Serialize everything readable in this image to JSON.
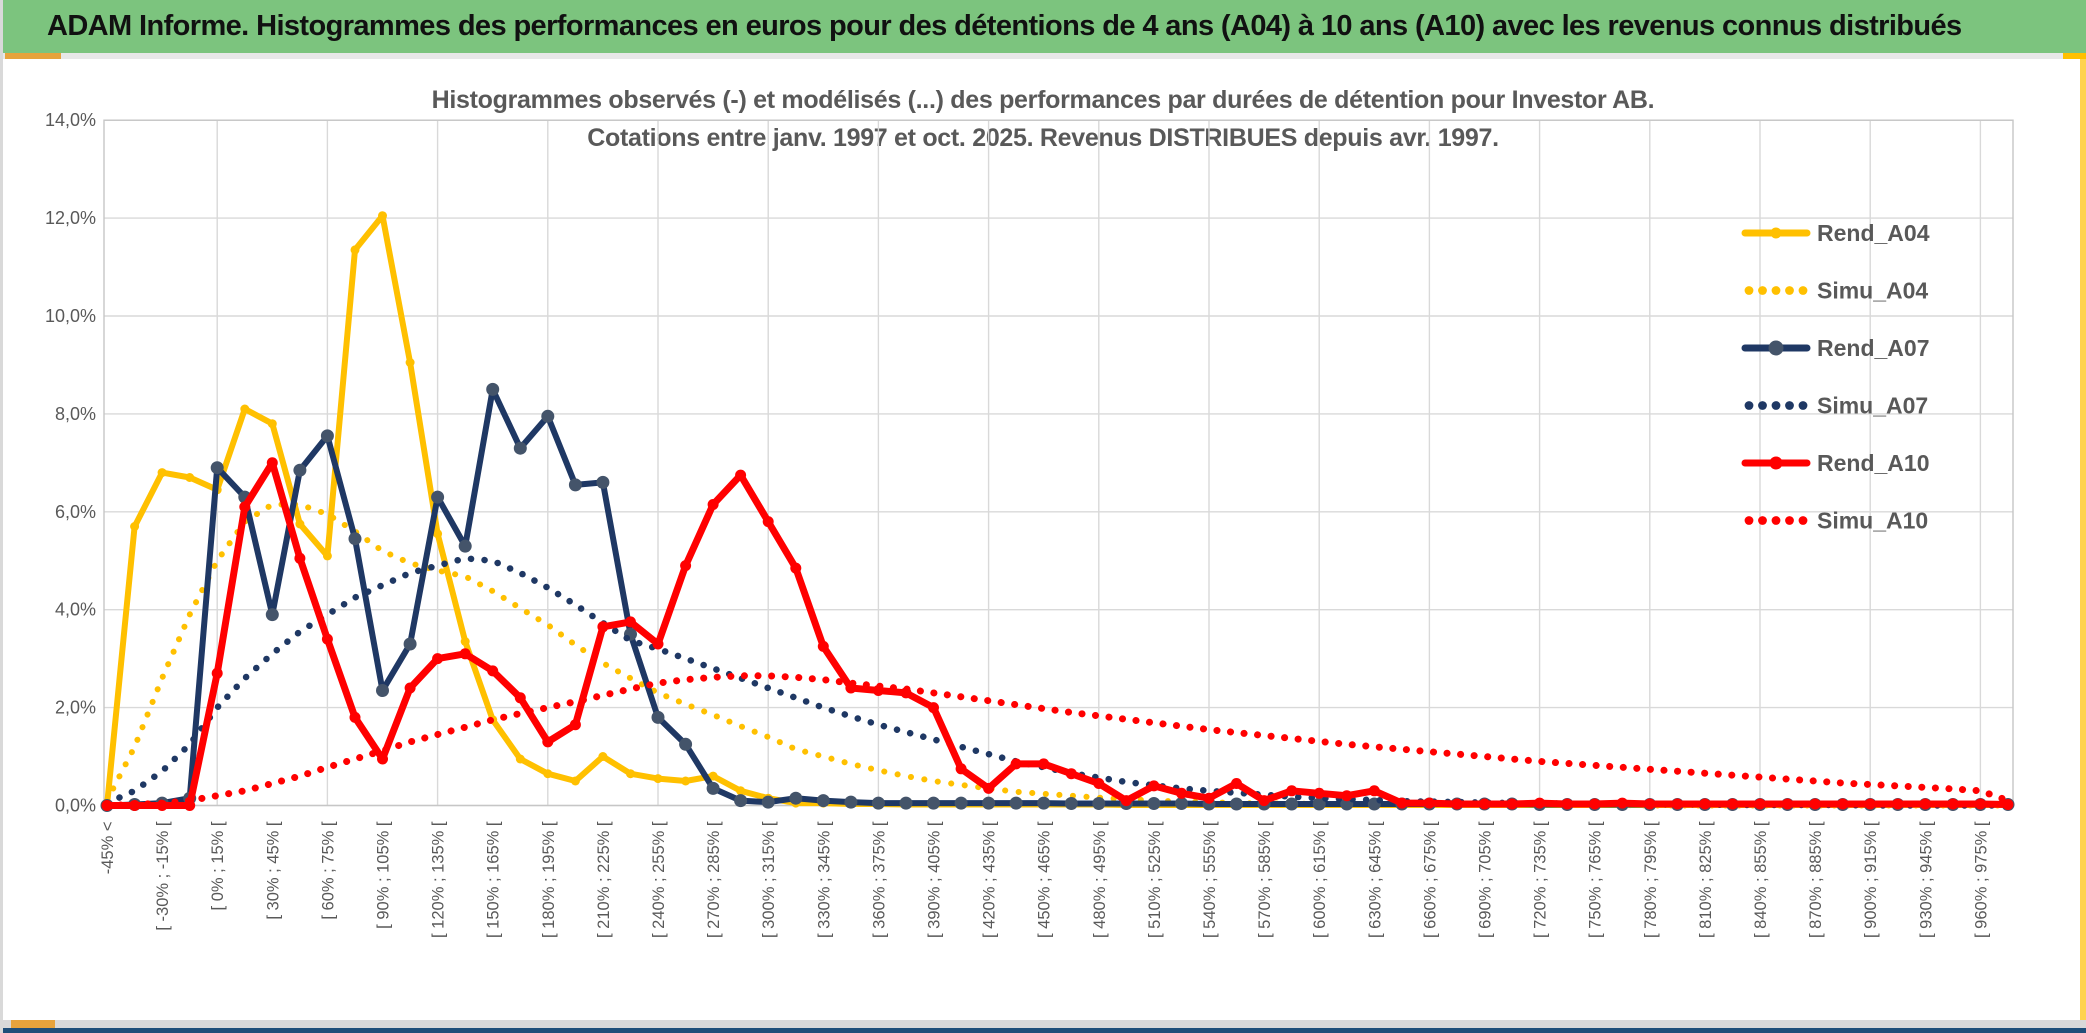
{
  "window": {
    "header_title": "ADAM Informe. Histogrammes des performances en euros pour des détentions de 4 ans (A04) à 10 ans (A10) avec les revenus connus distribués",
    "accent": {
      "header_green": "#7cc47e",
      "yellow": "#ffc000",
      "bottom_blue": "#1f4e79"
    }
  },
  "chart_data": {
    "type": "line",
    "title_line1": "Histogrammes observés (-) et modélisés (...) des performances par durées de détention pour Investor AB.",
    "title_line2": "Cotations entre janv. 1997 et oct. 2025. Revenus DISTRIBUES depuis avr. 1997.",
    "ylabel": "",
    "xlabel": "",
    "ylim": [
      0,
      14
    ],
    "y_ticks": [
      "0,0%",
      "2,0%",
      "4,0%",
      "6,0%",
      "8,0%",
      "10,0%",
      "12,0%",
      "14,0%"
    ],
    "grid": true,
    "legend_position": "right-inside",
    "n_bins": 70,
    "x_tick_every": 2,
    "x_tick_labels": [
      "-45% <",
      "[ -30% ; -15% [",
      "[ 0% ; 15% [",
      "[ 30% ; 45% [",
      "[ 60% ; 75% [",
      "[ 90% ; 105% [",
      "[ 120% ; 135% [",
      "[ 150% ; 165% [",
      "[ 180% ; 195% [",
      "[ 210% ; 225% [",
      "[ 240% ; 255% [",
      "[ 270% ; 285% [",
      "[ 300% ; 315% [",
      "[ 330% ; 345% [",
      "[ 360% ; 375% [",
      "[ 390% ; 405% [",
      "[ 420% ; 435% [",
      "[ 450% ; 465% [",
      "[ 480% ; 495% [",
      "[ 510% ; 525% [",
      "[ 540% ; 555% [",
      "[ 570% ; 585% [",
      "[ 600% ; 615% [",
      "[ 630% ; 645% [",
      "[ 660% ; 675% [",
      "[ 690% ; 705% [",
      "[ 720% ; 735% [",
      "[ 750% ; 765% [",
      "[ 780% ; 795% [",
      "[ 810% ; 825% [",
      "[ 840% ; 855% [",
      "[ 870% ; 885% [",
      "[ 900% ; 915% [",
      "[ 930% ; 945% [",
      "[ 960% ; 975% ["
    ],
    "series": [
      {
        "name": "Rend_A04",
        "style": "solid",
        "color": "#FFC000",
        "marker_color": "#FFC000",
        "width": 6,
        "marker_r": 4.5,
        "values": [
          0,
          5.7,
          6.8,
          6.7,
          6.45,
          8.1,
          7.8,
          5.75,
          5.1,
          11.35,
          12.05,
          9.05,
          5.55,
          3.35,
          1.75,
          0.95,
          0.65,
          0.5,
          1.0,
          0.65,
          0.55,
          0.5,
          0.6,
          0.3,
          0.15,
          0.05,
          0.05,
          0.03,
          0.03,
          0.02,
          0.02,
          0.02,
          0.02,
          0.02,
          0.02,
          0.02,
          0.02,
          0.01,
          0.01,
          0.01,
          0.01,
          0.01,
          0.01,
          0.01,
          0.01,
          0.01,
          0.01,
          0.01,
          0.01,
          0.01,
          0.01,
          0.01,
          0.01,
          0.01,
          0.01,
          0.01,
          0.01,
          0.01,
          0.01,
          0.01,
          0.01,
          0.01,
          0.01,
          0.01,
          0.01,
          0.01,
          0.01,
          0.01,
          0.01,
          0.01
        ]
      },
      {
        "name": "Simu_A04",
        "style": "dotted",
        "color": "#FFC000",
        "width": 6,
        "values": [
          0.1,
          1.2,
          2.6,
          3.9,
          5.0,
          5.8,
          6.15,
          6.15,
          5.95,
          5.6,
          5.2,
          4.95,
          4.8,
          4.68,
          4.38,
          4.03,
          3.69,
          3.28,
          2.91,
          2.6,
          2.3,
          2.07,
          1.85,
          1.62,
          1.4,
          1.15,
          1.0,
          0.85,
          0.72,
          0.6,
          0.5,
          0.42,
          0.35,
          0.28,
          0.24,
          0.2,
          0.16,
          0.13,
          0.1,
          0.08,
          0.07,
          0.05,
          0.04,
          0.04,
          0.03,
          0.03,
          0.02,
          0.02,
          0.02,
          0.01,
          0.01,
          0.01,
          0.01,
          0.01,
          0.01,
          0.01,
          0,
          0,
          0,
          0,
          0,
          0,
          0,
          0,
          0,
          0,
          0,
          0,
          0,
          0
        ]
      },
      {
        "name": "Rend_A07",
        "style": "solid",
        "color": "#1F3864",
        "marker_color": "#44546A",
        "width": 6,
        "marker_r": 6.5,
        "values": [
          0,
          0.02,
          0.05,
          0.15,
          6.9,
          6.3,
          3.9,
          6.85,
          7.55,
          5.45,
          2.35,
          3.3,
          6.3,
          5.3,
          8.5,
          7.3,
          7.95,
          6.55,
          6.6,
          3.5,
          1.8,
          1.25,
          0.35,
          0.1,
          0.07,
          0.15,
          0.1,
          0.07,
          0.05,
          0.05,
          0.05,
          0.05,
          0.05,
          0.05,
          0.05,
          0.04,
          0.04,
          0.04,
          0.04,
          0.04,
          0.03,
          0.03,
          0.03,
          0.03,
          0.03,
          0.03,
          0.03,
          0.03,
          0.03,
          0.03,
          0.03,
          0.03,
          0.02,
          0.02,
          0.02,
          0.02,
          0.02,
          0.02,
          0.02,
          0.02,
          0.02,
          0.02,
          0.02,
          0.02,
          0.02,
          0.02,
          0.02,
          0.02,
          0.02,
          0.02
        ]
      },
      {
        "name": "Simu_A07",
        "style": "dotted",
        "color": "#1F3864",
        "width": 6.5,
        "values": [
          0.05,
          0.3,
          0.7,
          1.25,
          2.0,
          2.6,
          3.1,
          3.55,
          3.9,
          4.25,
          4.5,
          4.75,
          4.9,
          5.05,
          5.0,
          4.75,
          4.45,
          4.1,
          3.73,
          3.37,
          3.2,
          3.0,
          2.8,
          2.6,
          2.4,
          2.2,
          2.0,
          1.82,
          1.65,
          1.5,
          1.35,
          1.2,
          1.05,
          0.9,
          0.78,
          0.66,
          0.57,
          0.48,
          0.41,
          0.35,
          0.3,
          0.26,
          0.22,
          0.18,
          0.15,
          0.13,
          0.11,
          0.09,
          0.08,
          0.07,
          0.06,
          0.05,
          0.04,
          0.04,
          0.03,
          0.03,
          0.02,
          0.02,
          0.02,
          0.01,
          0.01,
          0.01,
          0.01,
          0.01,
          0,
          0,
          0,
          0,
          0,
          0
        ]
      },
      {
        "name": "Rend_A10",
        "style": "solid",
        "color": "#FF0000",
        "marker_color": "#FF0000",
        "width": 7,
        "marker_r": 5.5,
        "values": [
          0,
          0,
          0,
          0,
          2.7,
          6.1,
          7.0,
          5.05,
          3.4,
          1.8,
          0.95,
          2.4,
          3.0,
          3.1,
          2.75,
          2.2,
          1.3,
          1.65,
          3.65,
          3.75,
          3.3,
          4.9,
          6.15,
          6.75,
          5.8,
          4.85,
          3.25,
          2.4,
          2.35,
          2.3,
          2.0,
          0.75,
          0.35,
          0.85,
          0.85,
          0.65,
          0.45,
          0.1,
          0.4,
          0.25,
          0.15,
          0.45,
          0.1,
          0.3,
          0.25,
          0.2,
          0.3,
          0.05,
          0.05,
          0.03,
          0.03,
          0.03,
          0.05,
          0.03,
          0.03,
          0.05,
          0.03,
          0.03,
          0.03,
          0.03,
          0.03,
          0.03,
          0.03,
          0.03,
          0.03,
          0.03,
          0.03,
          0.03,
          0.03,
          0.02
        ]
      },
      {
        "name": "Simu_A10",
        "style": "dotted",
        "color": "#FF0000",
        "width": 7,
        "values": [
          0,
          0.02,
          0.05,
          0.1,
          0.2,
          0.3,
          0.45,
          0.6,
          0.78,
          0.95,
          1.12,
          1.3,
          1.45,
          1.6,
          1.75,
          1.88,
          2.0,
          2.12,
          2.25,
          2.38,
          2.5,
          2.57,
          2.62,
          2.65,
          2.65,
          2.62,
          2.57,
          2.5,
          2.44,
          2.38,
          2.3,
          2.22,
          2.14,
          2.06,
          1.98,
          1.9,
          1.83,
          1.76,
          1.69,
          1.62,
          1.55,
          1.49,
          1.43,
          1.37,
          1.31,
          1.25,
          1.2,
          1.15,
          1.1,
          1.05,
          1.0,
          0.95,
          0.9,
          0.86,
          0.82,
          0.78,
          0.74,
          0.7,
          0.66,
          0.62,
          0.58,
          0.54,
          0.5,
          0.46,
          0.43,
          0.4,
          0.37,
          0.34,
          0.3,
          0.1
        ]
      }
    ],
    "colors": {
      "grid": "#d9d9d9",
      "border": "#c6c6c6",
      "label": "#595959"
    }
  }
}
